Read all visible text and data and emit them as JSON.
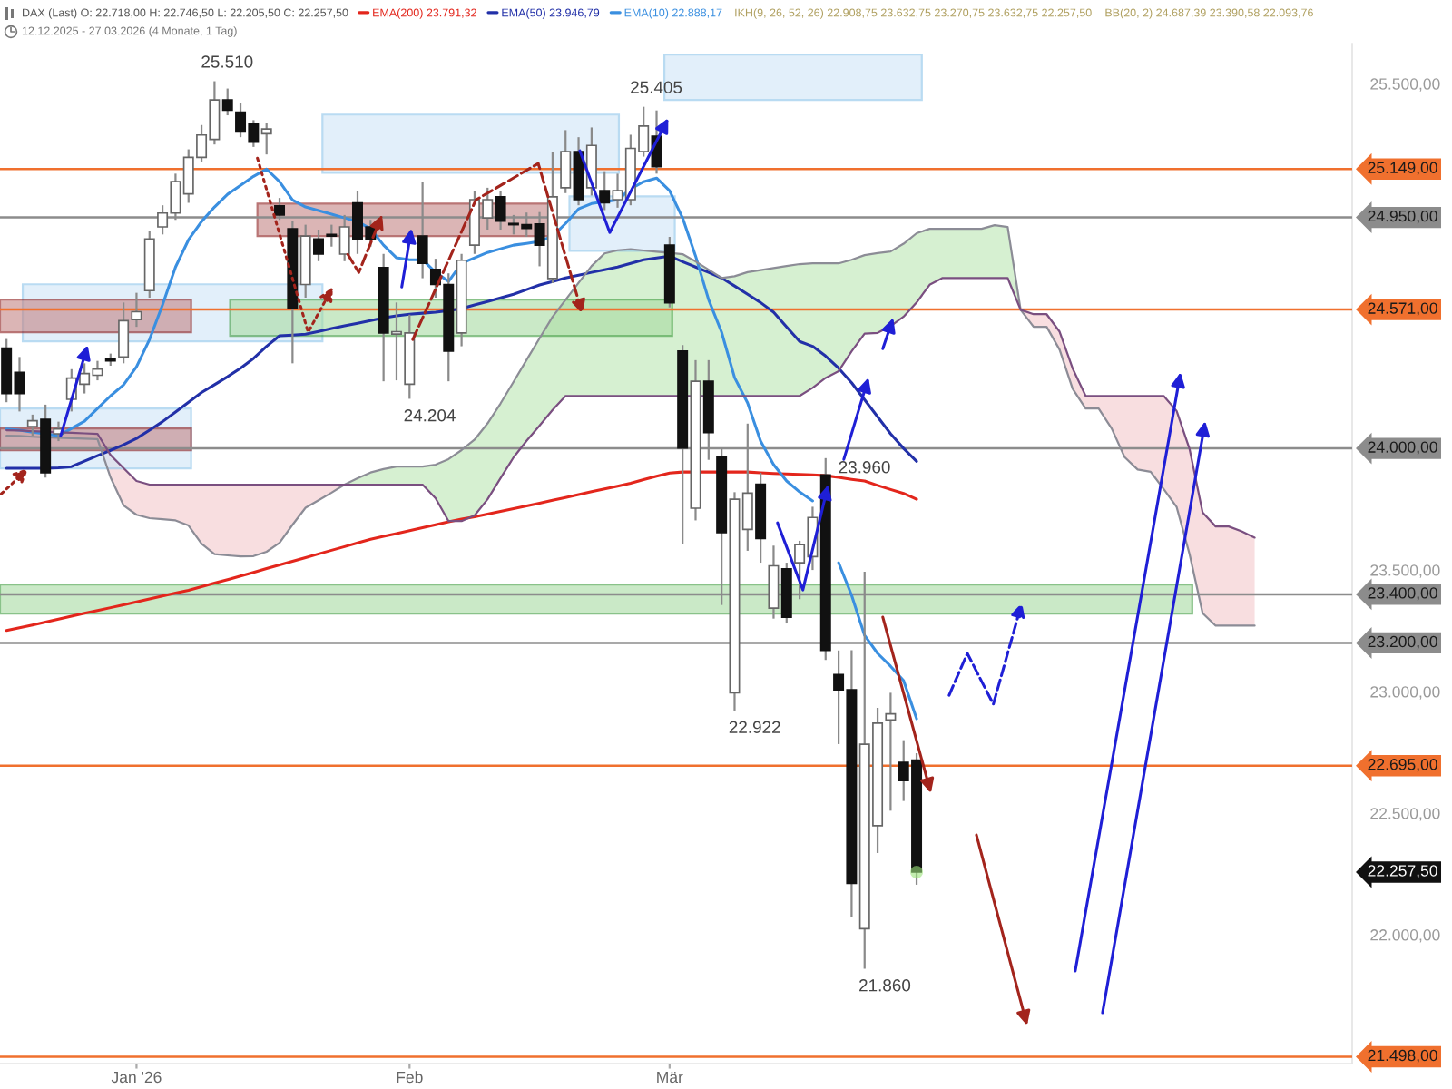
{
  "chart_data": {
    "type": "candlestick",
    "title": "DAX (Last) O: 22.718,00 H: 22.746,50 L: 22.205,50 C: 22.257,50",
    "subtitle": "12.12.2025 - 27.03.2026 (4 Monate, 1 Tag)",
    "categories": [
      null,
      null,
      null,
      null,
      null,
      null,
      null,
      null,
      null,
      null,
      "Jan '26",
      null,
      null,
      null,
      null,
      null,
      null,
      null,
      null,
      null,
      null,
      null,
      null,
      null,
      null,
      null,
      null,
      null,
      null,
      null,
      null,
      "Feb",
      null,
      null,
      null,
      null,
      null,
      null,
      null,
      null,
      null,
      null,
      null,
      null,
      null,
      null,
      null,
      null,
      null,
      null,
      null,
      "Mär",
      null,
      null,
      null,
      null,
      null,
      null,
      null,
      null,
      null,
      null,
      null,
      null,
      null,
      null,
      null,
      null,
      null,
      null,
      null,
      null,
      null,
      null,
      null,
      null,
      null,
      null,
      null,
      null,
      null,
      null,
      null,
      null,
      null,
      null,
      null,
      null,
      null,
      null,
      null,
      null,
      null,
      null,
      null,
      null,
      null,
      null,
      null,
      null,
      null,
      null,
      null,
      null
    ],
    "ohlc": [
      [
        24413,
        24450,
        24190,
        24226
      ],
      [
        24313,
        24376,
        24152,
        24226
      ],
      [
        24090,
        24139,
        24052,
        24114
      ],
      [
        24120,
        24180,
        23880,
        23900
      ],
      [
        24060,
        24110,
        24030,
        24080
      ],
      [
        24202,
        24326,
        24152,
        24289
      ],
      [
        24264,
        24350,
        24226,
        24308
      ],
      [
        24301,
        24360,
        24280,
        24326
      ],
      [
        24370,
        24390,
        24340,
        24360
      ],
      [
        24376,
        24600,
        24350,
        24525
      ],
      [
        24530,
        24640,
        24500,
        24562
      ],
      [
        24649,
        24893,
        24620,
        24861
      ],
      [
        24911,
        25000,
        24880,
        24968
      ],
      [
        24968,
        25130,
        24940,
        25097
      ],
      [
        25047,
        25230,
        25010,
        25197
      ],
      [
        25197,
        25330,
        25180,
        25289
      ],
      [
        25271,
        25510,
        25250,
        25433
      ],
      [
        25433,
        25480,
        25370,
        25391
      ],
      [
        25383,
        25420,
        25280,
        25301
      ],
      [
        25334,
        25350,
        25240,
        25259
      ],
      [
        25294,
        25340,
        25209,
        25314
      ],
      [
        24998,
        25030,
        24940,
        24960
      ],
      [
        24903,
        24935,
        24350,
        24575
      ],
      [
        24674,
        24920,
        24620,
        24873
      ],
      [
        24861,
        24900,
        24770,
        24799
      ],
      [
        24880,
        24920,
        24830,
        24873
      ],
      [
        24799,
        24960,
        24770,
        24911
      ],
      [
        25010,
        25060,
        24800,
        24861
      ],
      [
        24911,
        24940,
        24830,
        24861
      ],
      [
        24744,
        24800,
        24276,
        24475
      ],
      [
        24470,
        24600,
        24280,
        24480
      ],
      [
        24264,
        24550,
        24204,
        24475
      ],
      [
        24873,
        25097,
        24700,
        24761
      ],
      [
        24736,
        24780,
        24620,
        24674
      ],
      [
        24674,
        24720,
        24276,
        24400
      ],
      [
        24475,
        24800,
        24420,
        24774
      ],
      [
        24836,
        25060,
        24800,
        25023
      ],
      [
        24948,
        25072,
        24900,
        25023
      ],
      [
        25035,
        25060,
        24900,
        24935
      ],
      [
        24925,
        24960,
        24880,
        24920
      ],
      [
        24920,
        24970,
        24870,
        24905
      ],
      [
        24923,
        24972,
        24749,
        24836
      ],
      [
        24699,
        25220,
        24680,
        25035
      ],
      [
        25072,
        25309,
        25050,
        25221
      ],
      [
        25221,
        25280,
        25000,
        25023
      ],
      [
        25072,
        25320,
        25040,
        25246
      ],
      [
        25060,
        25140,
        24980,
        25010
      ],
      [
        25023,
        25130,
        24990,
        25060
      ],
      [
        25023,
        25290,
        25000,
        25234
      ],
      [
        25221,
        25405,
        25200,
        25326
      ],
      [
        25284,
        25390,
        25130,
        25159
      ],
      [
        24836,
        24870,
        24580,
        24599
      ],
      [
        24400,
        24425,
        23605,
        24002
      ],
      [
        23754,
        24363,
        23704,
        24276
      ],
      [
        24276,
        24363,
        23953,
        24065
      ],
      [
        23965,
        24000,
        23356,
        23654
      ],
      [
        22995,
        23820,
        22922,
        23791
      ],
      [
        23667,
        24102,
        23579,
        23816
      ],
      [
        23853,
        23900,
        23530,
        23629
      ],
      [
        23343,
        23600,
        23300,
        23517
      ],
      [
        23505,
        23530,
        23280,
        23306
      ],
      [
        23530,
        23620,
        23380,
        23604
      ],
      [
        23555,
        23760,
        23500,
        23716
      ],
      [
        23891,
        23960,
        23130,
        23169
      ],
      [
        23070,
        23169,
        22784,
        23007
      ],
      [
        23007,
        23170,
        22075,
        22211
      ],
      [
        22025,
        23493,
        21860,
        22783
      ],
      [
        22448,
        22933,
        22336,
        22870
      ],
      [
        22883,
        22995,
        22510,
        22908
      ],
      [
        22709,
        22800,
        22550,
        22634
      ],
      [
        22718,
        22746.5,
        22205.5,
        22257.5
      ],
      null,
      null,
      null,
      null,
      null,
      null,
      null,
      null,
      null,
      null,
      null,
      null,
      null,
      null,
      null,
      null,
      null,
      null,
      null,
      null,
      null,
      null,
      null,
      null,
      null,
      null,
      null,
      null,
      null,
      null,
      null,
      null,
      null
    ],
    "value_labels": [
      null,
      null,
      null,
      null,
      null,
      null,
      null,
      null,
      null,
      null,
      null,
      null,
      null,
      null,
      null,
      null,
      "25.510",
      null,
      null,
      null,
      null,
      null,
      null,
      null,
      null,
      null,
      null,
      null,
      null,
      null,
      null,
      "24.204",
      null,
      null,
      null,
      null,
      null,
      null,
      null,
      null,
      null,
      null,
      null,
      null,
      null,
      null,
      null,
      null,
      null,
      "25.405",
      null,
      null,
      null,
      null,
      null,
      null,
      "22.922",
      null,
      null,
      null,
      null,
      null,
      null,
      "23.960",
      null,
      null,
      "21.860",
      null,
      null,
      null,
      "22.257,50",
      null,
      null,
      null,
      null,
      null,
      null,
      null,
      null,
      null,
      null,
      null,
      null,
      null,
      null,
      null,
      null,
      null,
      null,
      null,
      null,
      null,
      null,
      null,
      null,
      null,
      null,
      null,
      null,
      null,
      null,
      null,
      null,
      null
    ],
    "series": [
      {
        "name": "EMA(200) 23.791,32",
        "type": "line",
        "color": "#e3261c",
        "values": [
          23251,
          23262,
          23274,
          23286,
          23298,
          23310,
          23322,
          23333,
          23345,
          23357,
          23369,
          23381,
          23393,
          23405,
          23416,
          23431,
          23446,
          23460,
          23475,
          23490,
          23506,
          23521,
          23536,
          23551,
          23566,
          23581,
          23596,
          23611,
          23626,
          23638,
          23650,
          23662,
          23674,
          23686,
          23698,
          23709,
          23719,
          23730,
          23741,
          23752,
          23763,
          23775,
          23787,
          23798,
          23810,
          23822,
          23833,
          23845,
          23857,
          23872,
          23886,
          23899,
          23903,
          23903,
          23903,
          23903,
          23903,
          23903,
          23900,
          23897,
          23895,
          23893,
          23891,
          23888,
          23881,
          23873,
          23866,
          23848,
          23831,
          23815,
          23791,
          null,
          null,
          null,
          null,
          null,
          null,
          null,
          null,
          null,
          null,
          null,
          null,
          null,
          null,
          null,
          null,
          null,
          null,
          null,
          null,
          null,
          null,
          null,
          null,
          null,
          null,
          null,
          null,
          null,
          null,
          null,
          null,
          null
        ]
      },
      {
        "name": "EMA(50) 23.946,79",
        "type": "line",
        "color": "#2230a8",
        "values": [
          23918,
          23918,
          23918,
          23918,
          23920,
          23925,
          23948,
          23970,
          23992,
          24015,
          24041,
          24075,
          24110,
          24150,
          24190,
          24230,
          24262,
          24295,
          24330,
          24370,
          24420,
          24463,
          24466,
          24470,
          24481,
          24493,
          24504,
          24515,
          24526,
          24537,
          24545,
          24552,
          24556,
          24560,
          24567,
          24575,
          24590,
          24604,
          24619,
          24634,
          24653,
          24672,
          24686,
          24701,
          24712,
          24724,
          24735,
          24746,
          24761,
          24776,
          24783,
          24791,
          24768,
          24746,
          24724,
          24701,
          24668,
          24634,
          24600,
          24560,
          24500,
          24440,
          24420,
          24380,
          24330,
          24270,
          24200,
          24130,
          24060,
          24000,
          23947,
          null,
          null,
          null,
          null,
          null,
          null,
          null,
          null,
          null,
          null,
          null,
          null,
          null,
          null,
          null,
          null,
          null,
          null,
          null,
          null,
          null,
          null,
          null,
          null,
          null,
          null,
          null,
          null,
          null,
          null,
          null,
          null,
          null
        ]
      },
      {
        "name": "EMA(10) 22.888,17",
        "type": "line",
        "color": "#3a8fe0",
        "values": [
          24080,
          24075,
          24067,
          24060,
          24052,
          24082,
          24112,
          24164,
          24216,
          24261,
          24336,
          24448,
          24590,
          24746,
          24858,
          24933,
          24993,
          25045,
          25082,
          25119,
          25149,
          25097,
          25022,
          24993,
          24978,
          24963,
          24948,
          24933,
          24903,
          24836,
          24784,
          24776,
          24776,
          24724,
          24687,
          24761,
          24784,
          24806,
          24821,
          24836,
          24843,
          24851,
          24873,
          24925,
          24985,
          25007,
          25015,
          25022,
          25067,
          25097,
          25112,
          25060,
          24948,
          24791,
          24612,
          24478,
          24291,
          24187,
          24030,
          23933,
          23866,
          23821,
          23784,
          null,
          23530,
          23396,
          23231,
          23157,
          23104,
          23045,
          22888,
          null,
          null,
          null,
          null,
          null,
          null,
          null,
          null,
          null,
          null,
          null,
          null,
          null,
          null,
          null,
          null,
          null,
          null,
          null,
          null,
          null,
          null,
          null,
          null,
          null,
          null,
          null,
          null,
          null,
          null,
          null,
          null,
          null
        ]
      },
      {
        "type": "line",
        "color": "#8c8c96",
        "values": [
          24052,
          24051,
          24048,
          24046,
          24044,
          24042,
          24040,
          24038,
          23881,
          23766,
          23727,
          23713,
          23709,
          23704,
          23683,
          23608,
          23565,
          23560,
          23556,
          23557,
          23575,
          23612,
          23686,
          23756,
          23787,
          23818,
          23851,
          23877,
          23901,
          23915,
          23925,
          23925,
          23925,
          23933,
          23956,
          23993,
          24036,
          24103,
          24185,
          24274,
          24364,
          24453,
          24541,
          24611,
          24681,
          24750,
          24802,
          24815,
          24819,
          24814,
          24809,
          24804,
          24799,
          24769,
          24735,
          24701,
          24708,
          24725,
          24733,
          24742,
          24750,
          24758,
          24761,
          24761,
          24761,
          24776,
          24795,
          24803,
          24810,
          24842,
          24885,
          24903,
          24903,
          24903,
          24903,
          24903,
          24918,
          24911,
          24570,
          24500,
          24500,
          24406,
          24245,
          24164,
          24164,
          24082,
          23964,
          23913,
          23904,
          23833,
          23759,
          23564,
          23322,
          23271,
          23271,
          23271,
          23271,
          null,
          null,
          null,
          null,
          null,
          null,
          null
        ],
        "lower": [
          null,
          null,
          null,
          null,
          null,
          null,
          null,
          null,
          null,
          null,
          null,
          null,
          null,
          null,
          null,
          null,
          null,
          null,
          null,
          null,
          null,
          null,
          null,
          null,
          null,
          null,
          23851,
          23851,
          23851,
          23851,
          23851,
          23851,
          23851,
          23795,
          23701,
          23701,
          23724,
          23791,
          23878,
          23963,
          24031,
          24094,
          24158,
          24216,
          24216,
          24216,
          24216,
          24216,
          24216,
          24216,
          24216,
          24216,
          24216,
          24216,
          24216,
          24216,
          24216,
          24216,
          24216,
          24216,
          24216,
          24216,
          24249,
          24290,
          24318,
          24399,
          24472,
          24475,
          24503,
          24542,
          24600,
          24673,
          24701,
          24701,
          24701,
          24701,
          24701,
          24701,
          24570,
          null,
          null,
          null,
          null,
          null,
          null,
          null,
          null,
          null,
          null,
          null,
          null,
          null,
          null,
          null,
          null,
          null,
          null,
          null,
          null,
          null,
          null,
          null,
          null,
          null
        ],
        "upper": [
          null,
          null,
          null,
          null,
          null,
          null,
          null,
          null,
          null,
          null,
          null,
          null,
          null,
          null,
          null,
          null,
          null,
          null,
          null,
          null,
          null,
          null,
          null,
          null,
          null,
          null,
          23851,
          23877,
          23901,
          23915,
          23925,
          23925,
          23925,
          23933,
          23956,
          23993,
          24036,
          24103,
          24185,
          24274,
          24364,
          24453,
          24541,
          24611,
          24681,
          24750,
          24802,
          24815,
          24819,
          24814,
          24809,
          24804,
          24799,
          24769,
          24735,
          24701,
          24708,
          24725,
          24733,
          24742,
          24750,
          24758,
          24761,
          24761,
          24761,
          24776,
          24795,
          24803,
          24810,
          24842,
          24885,
          24903,
          24903,
          24903,
          24903,
          24903,
          24918,
          24911,
          24570,
          null,
          null,
          null,
          null,
          null,
          null,
          null,
          null,
          null,
          null,
          null,
          null,
          null,
          null,
          null,
          null,
          null,
          null,
          null,
          null,
          null,
          null,
          null,
          null,
          null
        ]
      },
      {
        "type": "line",
        "color": "#7a4f80",
        "values": [
          24075,
          24074,
          24071,
          24069,
          24066,
          24064,
          24062,
          24060,
          23973,
          23919,
          23866,
          23851,
          23851,
          23851,
          23851,
          23851,
          23851,
          23851,
          23851,
          23851,
          23851,
          23851,
          23851,
          23851,
          23851,
          23851,
          23851,
          23851,
          23851,
          23851,
          23851,
          23851,
          23851,
          23795,
          23701,
          23701,
          23724,
          23791,
          23878,
          23963,
          24031,
          24094,
          24158,
          24216,
          24216,
          24216,
          24216,
          24216,
          24216,
          24216,
          24216,
          24216,
          24216,
          24216,
          24216,
          24216,
          24216,
          24216,
          24216,
          24216,
          24216,
          24216,
          24249,
          24290,
          24318,
          24399,
          24472,
          24475,
          24503,
          24542,
          24600,
          24673,
          24701,
          24701,
          24701,
          24701,
          24701,
          24701,
          24570,
          24552,
          24552,
          24480,
          24329,
          24216,
          24216,
          24216,
          24216,
          24216,
          24216,
          24216,
          24154,
          23996,
          23736,
          23679,
          23679,
          23659,
          23633,
          null,
          null,
          null,
          null,
          null,
          null,
          null
        ],
        "lower": [
          24052,
          24051,
          24048,
          24046,
          24044,
          24042,
          24040,
          24038,
          23881,
          23766,
          23727,
          23713,
          23709,
          23704,
          23683,
          23608,
          23565,
          23560,
          23556,
          23557,
          23575,
          23612,
          23686,
          23756,
          23787,
          23818,
          23851,
          null,
          null,
          null,
          null,
          null,
          null,
          null,
          null,
          null,
          null,
          null,
          null,
          null,
          null,
          null,
          null,
          null,
          null,
          null,
          null,
          null,
          null,
          null,
          null,
          null,
          null,
          null,
          null,
          null,
          null,
          null,
          null,
          null,
          null,
          null,
          null,
          null,
          null,
          null,
          null,
          null,
          null,
          null,
          null,
          null,
          null,
          null,
          null,
          null,
          null,
          null,
          24570,
          24500,
          24500,
          24406,
          24245,
          24164,
          24164,
          24082,
          23964,
          23913,
          23904,
          23833,
          23759,
          23564,
          23322,
          23271,
          23271,
          23271,
          23271,
          null,
          null,
          null,
          null,
          null,
          null,
          null
        ],
        "upper": [
          24075,
          24074,
          24071,
          24069,
          24066,
          24064,
          24062,
          24060,
          23973,
          23919,
          23866,
          23851,
          23851,
          23851,
          23851,
          23851,
          23851,
          23851,
          23851,
          23851,
          23851,
          23851,
          23851,
          23851,
          23851,
          23851,
          23851,
          null,
          null,
          null,
          null,
          null,
          null,
          null,
          null,
          null,
          null,
          null,
          null,
          null,
          null,
          null,
          null,
          null,
          null,
          null,
          null,
          null,
          null,
          null,
          null,
          null,
          null,
          null,
          null,
          null,
          null,
          null,
          null,
          null,
          null,
          null,
          null,
          null,
          null,
          null,
          null,
          null,
          null,
          null,
          null,
          null,
          null,
          null,
          null,
          null,
          null,
          null,
          24570,
          24552,
          24552,
          24480,
          24329,
          24216,
          24216,
          24216,
          24216,
          24216,
          24216,
          24216,
          24154,
          23996,
          23736,
          23679,
          23679,
          23659,
          23633,
          null,
          null,
          null,
          null,
          null,
          null,
          null
        ]
      }
    ],
    "ylim": [
      21470,
      25665
    ],
    "yticks": [
      {
        "value": 22000,
        "label": "22.000,00"
      },
      {
        "value": 22500,
        "label": "22.500,00"
      },
      {
        "value": 23000,
        "label": "23.000,00"
      },
      {
        "value": 23500,
        "label": "23.500,00"
      },
      {
        "value": 25500,
        "label": "25.500,00"
      }
    ],
    "ref_lines": [
      {
        "axis": "y",
        "value": 25149,
        "label": "25.149,00",
        "color": "#f0702e"
      },
      {
        "axis": "y",
        "value": 24950,
        "label": "24.950,00",
        "color": "#8c8c8c"
      },
      {
        "axis": "y",
        "value": 24571,
        "label": "24.571,00",
        "color": "#f0702e"
      },
      {
        "axis": "y",
        "value": 24000,
        "label": "24.000,00",
        "color": "#8c8c8c"
      },
      {
        "axis": "y",
        "value": 23400,
        "label": "23.400,00",
        "color": "#8c8c8c"
      },
      {
        "axis": "y",
        "value": 23200,
        "label": "23.200,00",
        "color": "#8c8c8c"
      },
      {
        "axis": "y",
        "value": 22695,
        "label": "22.695,00",
        "color": "#f0702e"
      },
      {
        "axis": "y",
        "value": 21498,
        "label": "21.498,00",
        "color": "#f0702e"
      }
    ],
    "annotations": [
      "IKH(9, 26, 52, 26) 22.908,75 23.632,75 23.270,75 23.632,75 22.257,50",
      "BB(20, 2) 24.687,39 23.390,58 22.093,76"
    ],
    "legend": "top left"
  }
}
